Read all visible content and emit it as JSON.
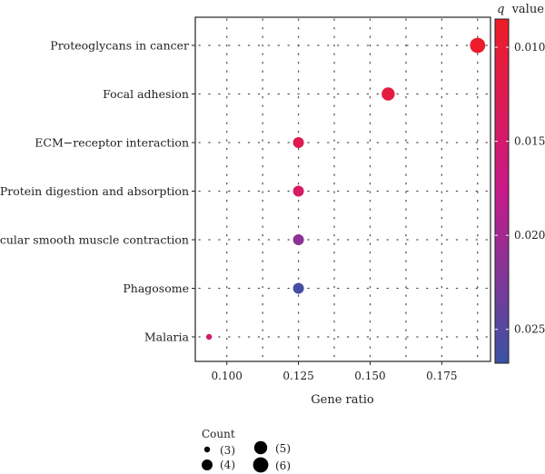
{
  "chart_data": {
    "type": "scatter",
    "xlabel": "Gene ratio",
    "xlim": [
      0.089,
      0.192
    ],
    "xticks": [
      0.1,
      0.125,
      0.15,
      0.175
    ],
    "xtick_labels": [
      "0.100",
      "0.125",
      "0.150",
      "0.175"
    ],
    "grid": "dotted",
    "categories": [
      "Proteoglycans in cancer",
      "Focal adhesion",
      "ECM−receptor interaction",
      "Protein digestion and absorption",
      "Vascular smooth muscle contraction",
      "Phagosome",
      "Malaria"
    ],
    "points": [
      {
        "term": "Proteoglycans in cancer",
        "gene_ratio": 0.1875,
        "count": 6,
        "q_value": 0.009
      },
      {
        "term": "Focal adhesion",
        "gene_ratio": 0.1563,
        "count": 5,
        "q_value": 0.011
      },
      {
        "term": "ECM−receptor interaction",
        "gene_ratio": 0.125,
        "count": 4,
        "q_value": 0.0125
      },
      {
        "term": "Protein digestion and absorption",
        "gene_ratio": 0.125,
        "count": 4,
        "q_value": 0.014
      },
      {
        "term": "Vascular smooth muscle contraction",
        "gene_ratio": 0.125,
        "count": 4,
        "q_value": 0.0215
      },
      {
        "term": "Phagosome",
        "gene_ratio": 0.125,
        "count": 4,
        "q_value": 0.026
      },
      {
        "term": "Malaria",
        "gene_ratio": 0.0938,
        "count": 3,
        "q_value": 0.015
      }
    ],
    "color_legend": {
      "title_italic": "q",
      "title_rest": "value",
      "range": [
        0.0085,
        0.0268
      ],
      "ticks": [
        0.01,
        0.015,
        0.02,
        0.025
      ],
      "tick_labels": [
        "0.010",
        "0.015",
        "0.020",
        "0.025"
      ],
      "color_low_q": "#ee1c25",
      "color_mid_q": "#c71a8a",
      "color_high_q": "#3953a4",
      "placement": "right"
    },
    "size_legend": {
      "title": "Count",
      "items": [
        {
          "count": 3,
          "label": "(3)"
        },
        {
          "count": 4,
          "label": "(4)"
        },
        {
          "count": 5,
          "label": "(5)"
        },
        {
          "count": 6,
          "label": "(6)"
        }
      ],
      "placement": "bottom"
    }
  }
}
